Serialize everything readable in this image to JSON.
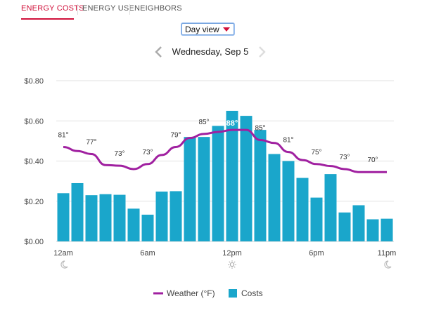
{
  "tabs": [
    {
      "label": "ENERGY COSTS",
      "active": true
    },
    {
      "label": "ENERGY USE",
      "active": false
    },
    {
      "label": "NEIGHBORS",
      "active": false
    }
  ],
  "view_select": {
    "value": "Day view"
  },
  "date_nav": {
    "title": "Wednesday, Sep 5",
    "prev_icon": "chevron-left-icon",
    "next_icon": "chevron-right-icon"
  },
  "colors": {
    "accent": "#d0103a",
    "bars": "#1aa6cb",
    "weather_line": "#a020a0",
    "grid": "#e2e2e2"
  },
  "chart_data": {
    "type": "bar",
    "y_axis": {
      "ticks": [
        "$0.80",
        "$0.60",
        "$0.40",
        "$0.20",
        "$0.00"
      ],
      "ylim": [
        0,
        0.8
      ]
    },
    "x_tick_labels": [
      {
        "hour": 0,
        "label": "12am",
        "icon": "moon-icon"
      },
      {
        "hour": 6,
        "label": "6am",
        "icon": ""
      },
      {
        "hour": 12,
        "label": "12pm",
        "icon": "sun-icon"
      },
      {
        "hour": 18,
        "label": "6pm",
        "icon": ""
      },
      {
        "hour": 23,
        "label": "11pm",
        "icon": "moon-icon"
      }
    ],
    "series": [
      {
        "name": "Costs",
        "values": [
          0.24,
          0.29,
          0.23,
          0.235,
          0.232,
          0.163,
          0.133,
          0.248,
          0.25,
          0.52,
          0.52,
          0.575,
          0.65,
          0.625,
          0.555,
          0.435,
          0.4,
          0.316,
          0.218,
          0.335,
          0.144,
          0.18,
          0.11,
          0.113
        ]
      },
      {
        "name": "Weather (°F)",
        "values": [
          0.47,
          0.45,
          0.435,
          0.38,
          0.377,
          0.36,
          0.385,
          0.43,
          0.47,
          0.515,
          0.535,
          0.545,
          0.555,
          0.555,
          0.505,
          0.49,
          0.445,
          0.405,
          0.385,
          0.375,
          0.36,
          0.345,
          0.345,
          0.345
        ]
      }
    ],
    "temperature_labels": [
      {
        "hour": 0,
        "text": "81°",
        "highlight": false
      },
      {
        "hour": 2,
        "text": "77°",
        "highlight": false
      },
      {
        "hour": 4,
        "text": "73°",
        "highlight": false
      },
      {
        "hour": 6,
        "text": "73°",
        "highlight": false
      },
      {
        "hour": 8,
        "text": "79°",
        "highlight": false
      },
      {
        "hour": 10,
        "text": "85°",
        "highlight": false
      },
      {
        "hour": 12,
        "text": "88°",
        "highlight": true
      },
      {
        "hour": 14,
        "text": "85°",
        "highlight": false
      },
      {
        "hour": 16,
        "text": "81°",
        "highlight": false
      },
      {
        "hour": 18,
        "text": "75°",
        "highlight": false
      },
      {
        "hour": 20,
        "text": "73°",
        "highlight": false
      },
      {
        "hour": 22,
        "text": "70°",
        "highlight": false
      }
    ],
    "legend": [
      {
        "label": "Weather (°F)",
        "kind": "line"
      },
      {
        "label": "Costs",
        "kind": "bar"
      }
    ],
    "grid": true,
    "legend_position": "bottom-center"
  }
}
